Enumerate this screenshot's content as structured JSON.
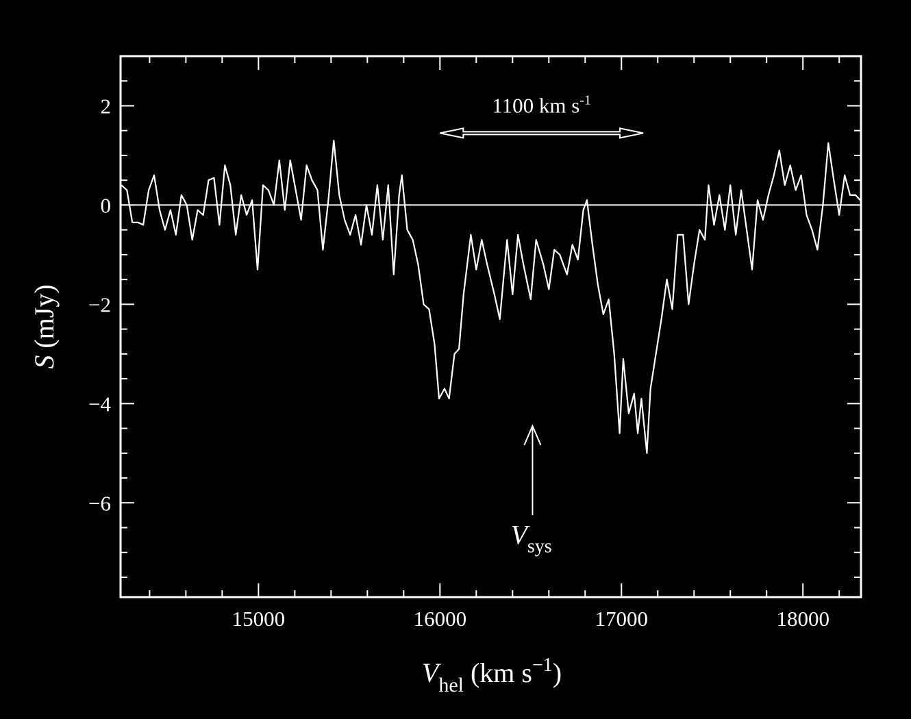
{
  "chart_data": {
    "type": "line",
    "color": "#ffffff",
    "ylabel": {
      "symbol": "S",
      "unit": "(mJy)"
    },
    "xlabel": {
      "symbol": "V",
      "sub": "hel",
      "unit": "(km s",
      "sup": "−1",
      "close": ")"
    },
    "xlim": [
      14240,
      18320
    ],
    "ylim": [
      -7.9,
      3.0
    ],
    "xticks": [
      15000,
      16000,
      17000,
      18000
    ],
    "xminorticks": [
      14400,
      14600,
      14800,
      15200,
      15400,
      15600,
      15800,
      16200,
      16400,
      16600,
      16800,
      17200,
      17400,
      17600,
      17800,
      18200
    ],
    "yticks": [
      2,
      0,
      {
        "value": -2,
        "label": "−2"
      },
      {
        "value": -4,
        "label": "−4"
      },
      {
        "value": -6,
        "label": "−6"
      }
    ],
    "yminorticks": [
      -7.5,
      -7,
      -6.5,
      -5.5,
      -5,
      -4.5,
      -3.5,
      -3,
      -2.5,
      -1.5,
      -1,
      -0.5,
      0.5,
      1,
      1.5,
      2.5
    ],
    "zero_line": 0,
    "annotations": [
      {
        "text": "1100 km s",
        "sup": "-1",
        "x": [
          16000,
          17120
        ],
        "y": 1.45
      },
      {
        "text": "V",
        "sub": "sys",
        "x": 16510,
        "y": [
          -6.25,
          -4.45
        ]
      }
    ],
    "x": [
      14245,
      14275,
      14305,
      14335,
      14365,
      14395,
      14425,
      14455,
      14485,
      14515,
      14545,
      14575,
      14605,
      14635,
      14665,
      14695,
      14725,
      14755,
      14785,
      14815,
      14845,
      14875,
      14905,
      14935,
      14965,
      14995,
      15025,
      15055,
      15085,
      15115,
      15145,
      15175,
      15205,
      15235,
      15265,
      15295,
      15325,
      15355,
      15385,
      15415,
      15445,
      15475,
      15505,
      15535,
      15565,
      15595,
      15625,
      15655,
      15685,
      15715,
      15745,
      15775,
      15790,
      15820,
      15850,
      15880,
      15910,
      15940,
      15970,
      15995,
      16025,
      16050,
      16080,
      16105,
      16130,
      16170,
      16200,
      16230,
      16260,
      16300,
      16330,
      16370,
      16400,
      16430,
      16460,
      16500,
      16530,
      16570,
      16600,
      16630,
      16660,
      16700,
      16730,
      16760,
      16790,
      16810,
      16840,
      16870,
      16900,
      16930,
      16960,
      16990,
      17010,
      17040,
      17070,
      17090,
      17110,
      17140,
      17160,
      17190,
      17220,
      17250,
      17280,
      17310,
      17340,
      17370,
      17400,
      17430,
      17460,
      17480,
      17510,
      17540,
      17570,
      17600,
      17630,
      17660,
      17690,
      17720,
      17750,
      17780,
      17810,
      17840,
      17870,
      17900,
      17930,
      17960,
      17990,
      18020,
      18050,
      18080,
      18110,
      18140,
      18170,
      18200,
      18230,
      18260,
      18290,
      18315
    ],
    "values": [
      0.4,
      0.3,
      -0.35,
      -0.35,
      -0.4,
      0.3,
      0.6,
      -0.1,
      -0.5,
      -0.1,
      -0.6,
      0.2,
      0.0,
      -0.7,
      -0.1,
      -0.2,
      0.5,
      0.55,
      -0.4,
      0.8,
      0.4,
      -0.6,
      0.2,
      -0.2,
      0.1,
      -1.3,
      0.4,
      0.3,
      0.0,
      0.9,
      -0.1,
      0.9,
      0.3,
      -0.3,
      0.8,
      0.5,
      0.3,
      -0.9,
      0.1,
      1.3,
      0.2,
      -0.3,
      -0.6,
      -0.2,
      -0.8,
      0.0,
      -0.6,
      0.4,
      -0.7,
      0.4,
      -1.4,
      0.2,
      0.6,
      -0.5,
      -0.7,
      -1.2,
      -2.0,
      -2.1,
      -2.8,
      -3.9,
      -3.7,
      -3.9,
      -3.0,
      -2.9,
      -1.8,
      -0.6,
      -1.3,
      -0.7,
      -1.2,
      -1.8,
      -2.3,
      -0.7,
      -1.8,
      -0.6,
      -1.2,
      -1.9,
      -0.7,
      -1.2,
      -1.7,
      -0.9,
      -1.0,
      -1.4,
      -0.8,
      -1.1,
      -0.1,
      0.1,
      -0.8,
      -1.6,
      -2.2,
      -1.9,
      -3.0,
      -4.6,
      -3.1,
      -4.2,
      -3.8,
      -4.6,
      -3.9,
      -5.0,
      -3.7,
      -3.0,
      -2.3,
      -1.5,
      -2.1,
      -0.6,
      -0.6,
      -2.0,
      -1.2,
      -0.5,
      -0.7,
      0.4,
      -0.4,
      0.2,
      -0.5,
      0.4,
      -0.6,
      0.3,
      -0.5,
      -1.3,
      0.1,
      -0.3,
      0.2,
      0.6,
      1.1,
      0.4,
      0.8,
      0.3,
      0.6,
      -0.2,
      -0.5,
      -0.9,
      0.0,
      1.25,
      0.5,
      -0.2,
      0.6,
      0.2,
      0.2,
      0.1
    ]
  }
}
